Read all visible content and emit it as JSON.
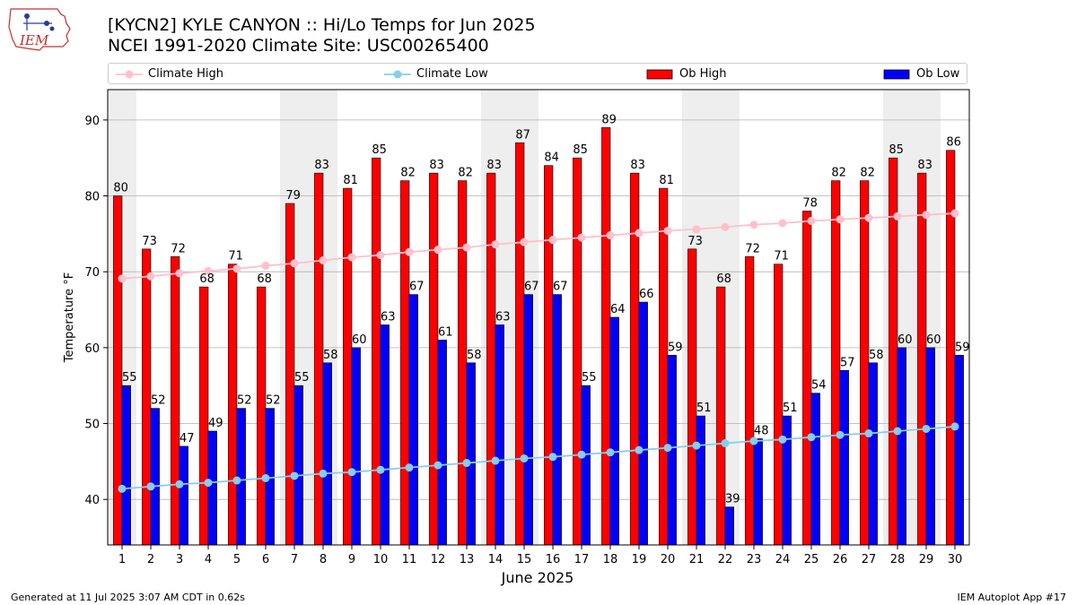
{
  "header": {
    "title_line1": "[KYCN2] KYLE CANYON :: Hi/Lo Temps for Jun 2025",
    "title_line2": "NCEI 1991-2020 Climate Site: USC00265400"
  },
  "logo": {
    "text": "IEM"
  },
  "legend": {
    "climate_high": "Climate High",
    "climate_low": "Climate Low",
    "ob_high": "Ob High",
    "ob_low": "Ob Low"
  },
  "footer": {
    "left": "Generated at 11 Jul 2025 3:07 AM CDT in 0.62s",
    "right": "IEM Autoplot App #17"
  },
  "colors": {
    "ob_high": "#ff0000",
    "ob_low": "#0000ff",
    "climate_high": "#ffc0cb",
    "climate_low": "#87ceeb",
    "weekend_shade": "#eeeeee",
    "grid": "#b0b0b0"
  },
  "chart_data": {
    "type": "bar",
    "xlabel": "June 2025",
    "ylabel": "Temperature °F",
    "ylim": [
      34,
      94
    ],
    "yticks": [
      40,
      50,
      60,
      70,
      80,
      90
    ],
    "grid": "horizontal",
    "legend_position": "top",
    "x": [
      1,
      2,
      3,
      4,
      5,
      6,
      7,
      8,
      9,
      10,
      11,
      12,
      13,
      14,
      15,
      16,
      17,
      18,
      19,
      20,
      21,
      22,
      23,
      24,
      25,
      26,
      27,
      28,
      29,
      30
    ],
    "shaded_days": [
      1,
      7,
      8,
      14,
      15,
      21,
      22,
      28,
      29
    ],
    "series": [
      {
        "name": "Ob High",
        "kind": "bar",
        "values": [
          80,
          73,
          72,
          68,
          71,
          68,
          79,
          83,
          81,
          85,
          82,
          83,
          82,
          83,
          87,
          84,
          85,
          89,
          83,
          81,
          73,
          68,
          72,
          71,
          78,
          82,
          82,
          85,
          83,
          86
        ]
      },
      {
        "name": "Ob Low",
        "kind": "bar",
        "values": [
          55,
          52,
          47,
          49,
          52,
          52,
          55,
          58,
          60,
          63,
          67,
          61,
          58,
          63,
          67,
          67,
          55,
          64,
          66,
          59,
          51,
          39,
          48,
          51,
          54,
          57,
          58,
          60,
          60,
          59
        ]
      },
      {
        "name": "Climate High",
        "kind": "line",
        "values": [
          69.1,
          69.4,
          69.8,
          70.1,
          70.4,
          70.8,
          71.1,
          71.5,
          71.9,
          72.2,
          72.6,
          72.9,
          73.2,
          73.6,
          73.9,
          74.2,
          74.5,
          74.8,
          75.1,
          75.4,
          75.6,
          75.9,
          76.2,
          76.4,
          76.7,
          76.9,
          77.1,
          77.3,
          77.5,
          77.7
        ]
      },
      {
        "name": "Climate Low",
        "kind": "line",
        "values": [
          41.4,
          41.7,
          42.0,
          42.2,
          42.5,
          42.8,
          43.1,
          43.4,
          43.6,
          43.9,
          44.2,
          44.5,
          44.8,
          45.1,
          45.4,
          45.6,
          45.9,
          46.2,
          46.5,
          46.8,
          47.1,
          47.4,
          47.7,
          47.9,
          48.2,
          48.5,
          48.7,
          49.0,
          49.3,
          49.6
        ]
      }
    ]
  }
}
